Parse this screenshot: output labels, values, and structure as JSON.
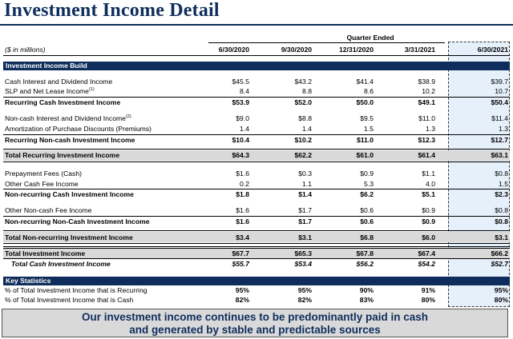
{
  "title": "Investment Income Detail",
  "units_label": "($ in millions)",
  "quarter_ended_label": "Quarter Ended",
  "columns": [
    "6/30/2020",
    "9/30/2020",
    "12/31/2020",
    "3/31/2021",
    "6/30/2021"
  ],
  "section_build": "Investment Income Build",
  "section_stats": "Key Statistics",
  "rows": {
    "cash_interest": {
      "label": "Cash Interest and Dividend Income",
      "values": [
        "$45.5",
        "$43.2",
        "$41.4",
        "$38.9",
        "$39.7"
      ]
    },
    "slp": {
      "label": "SLP and Net Lease Income",
      "sup": "(1)",
      "values": [
        "8.4",
        "8.8",
        "8.6",
        "10.2",
        "10.7"
      ]
    },
    "recurring_cash": {
      "label": "Recurring Cash Investment Income",
      "values": [
        "$53.9",
        "$52.0",
        "$50.0",
        "$49.1",
        "$50.4"
      ]
    },
    "noncash_interest": {
      "label": "Non-cash Interest and Dividend Income",
      "sup": "(2)",
      "values": [
        "$9.0",
        "$8.8",
        "$9.5",
        "$11.0",
        "$11.4"
      ]
    },
    "amortization": {
      "label": "Amortization of Purchase Discounts (Premiums)",
      "values": [
        "1.4",
        "1.4",
        "1.5",
        "1.3",
        "1.3"
      ]
    },
    "recurring_noncash": {
      "label": "Recurring Non-cash Investment Income",
      "values": [
        "$10.4",
        "$10.2",
        "$11.0",
        "$12.3",
        "$12.7"
      ]
    },
    "total_recurring": {
      "label": "Total Recurring Investment Income",
      "values": [
        "$64.3",
        "$62.2",
        "$61.0",
        "$61.4",
        "$63.1"
      ]
    },
    "prepayment": {
      "label": "Prepayment Fees (Cash)",
      "values": [
        "$1.6",
        "$0.3",
        "$0.9",
        "$1.1",
        "$0.8"
      ]
    },
    "other_cash_fee": {
      "label": "Other Cash Fee Income",
      "values": [
        "0.2",
        "1.1",
        "5.3",
        "4.0",
        "1.5"
      ]
    },
    "nonrecurring_cash": {
      "label": "Non-recurring Cash Investment Income",
      "values": [
        "$1.8",
        "$1.4",
        "$6.2",
        "$5.1",
        "$2.3"
      ]
    },
    "other_noncash_fee": {
      "label": "Other Non-cash Fee Income",
      "values": [
        "$1.6",
        "$1.7",
        "$0.6",
        "$0.9",
        "$0.8"
      ]
    },
    "nonrecurring_noncash": {
      "label": "Non-recurring Non-Cash Investment Income",
      "values": [
        "$1.6",
        "$1.7",
        "$0.6",
        "$0.9",
        "$0.8"
      ]
    },
    "total_nonrecurring": {
      "label": "Total Non-recurring Investment Income",
      "values": [
        "$3.4",
        "$3.1",
        "$6.8",
        "$6.0",
        "$3.1"
      ]
    },
    "total_investment": {
      "label": "Total Investment Income",
      "values": [
        "$67.7",
        "$65.3",
        "$67.8",
        "$67.4",
        "$66.2"
      ]
    },
    "total_cash": {
      "label": "Total Cash Investment Income",
      "values": [
        "$55.7",
        "$53.4",
        "$56.2",
        "$54.2",
        "$52.7"
      ]
    },
    "pct_recurring": {
      "label": "% of Total Investment Income that is Recurring",
      "values": [
        "95%",
        "95%",
        "90%",
        "91%",
        "95%"
      ]
    },
    "pct_cash": {
      "label": "% of Total Investment Income that is Cash",
      "values": [
        "82%",
        "82%",
        "83%",
        "80%",
        "80%"
      ]
    }
  },
  "banner_line1": "Our investment income continues to be predominantly paid in cash",
  "banner_line2": "and generated by stable and predictable sources"
}
